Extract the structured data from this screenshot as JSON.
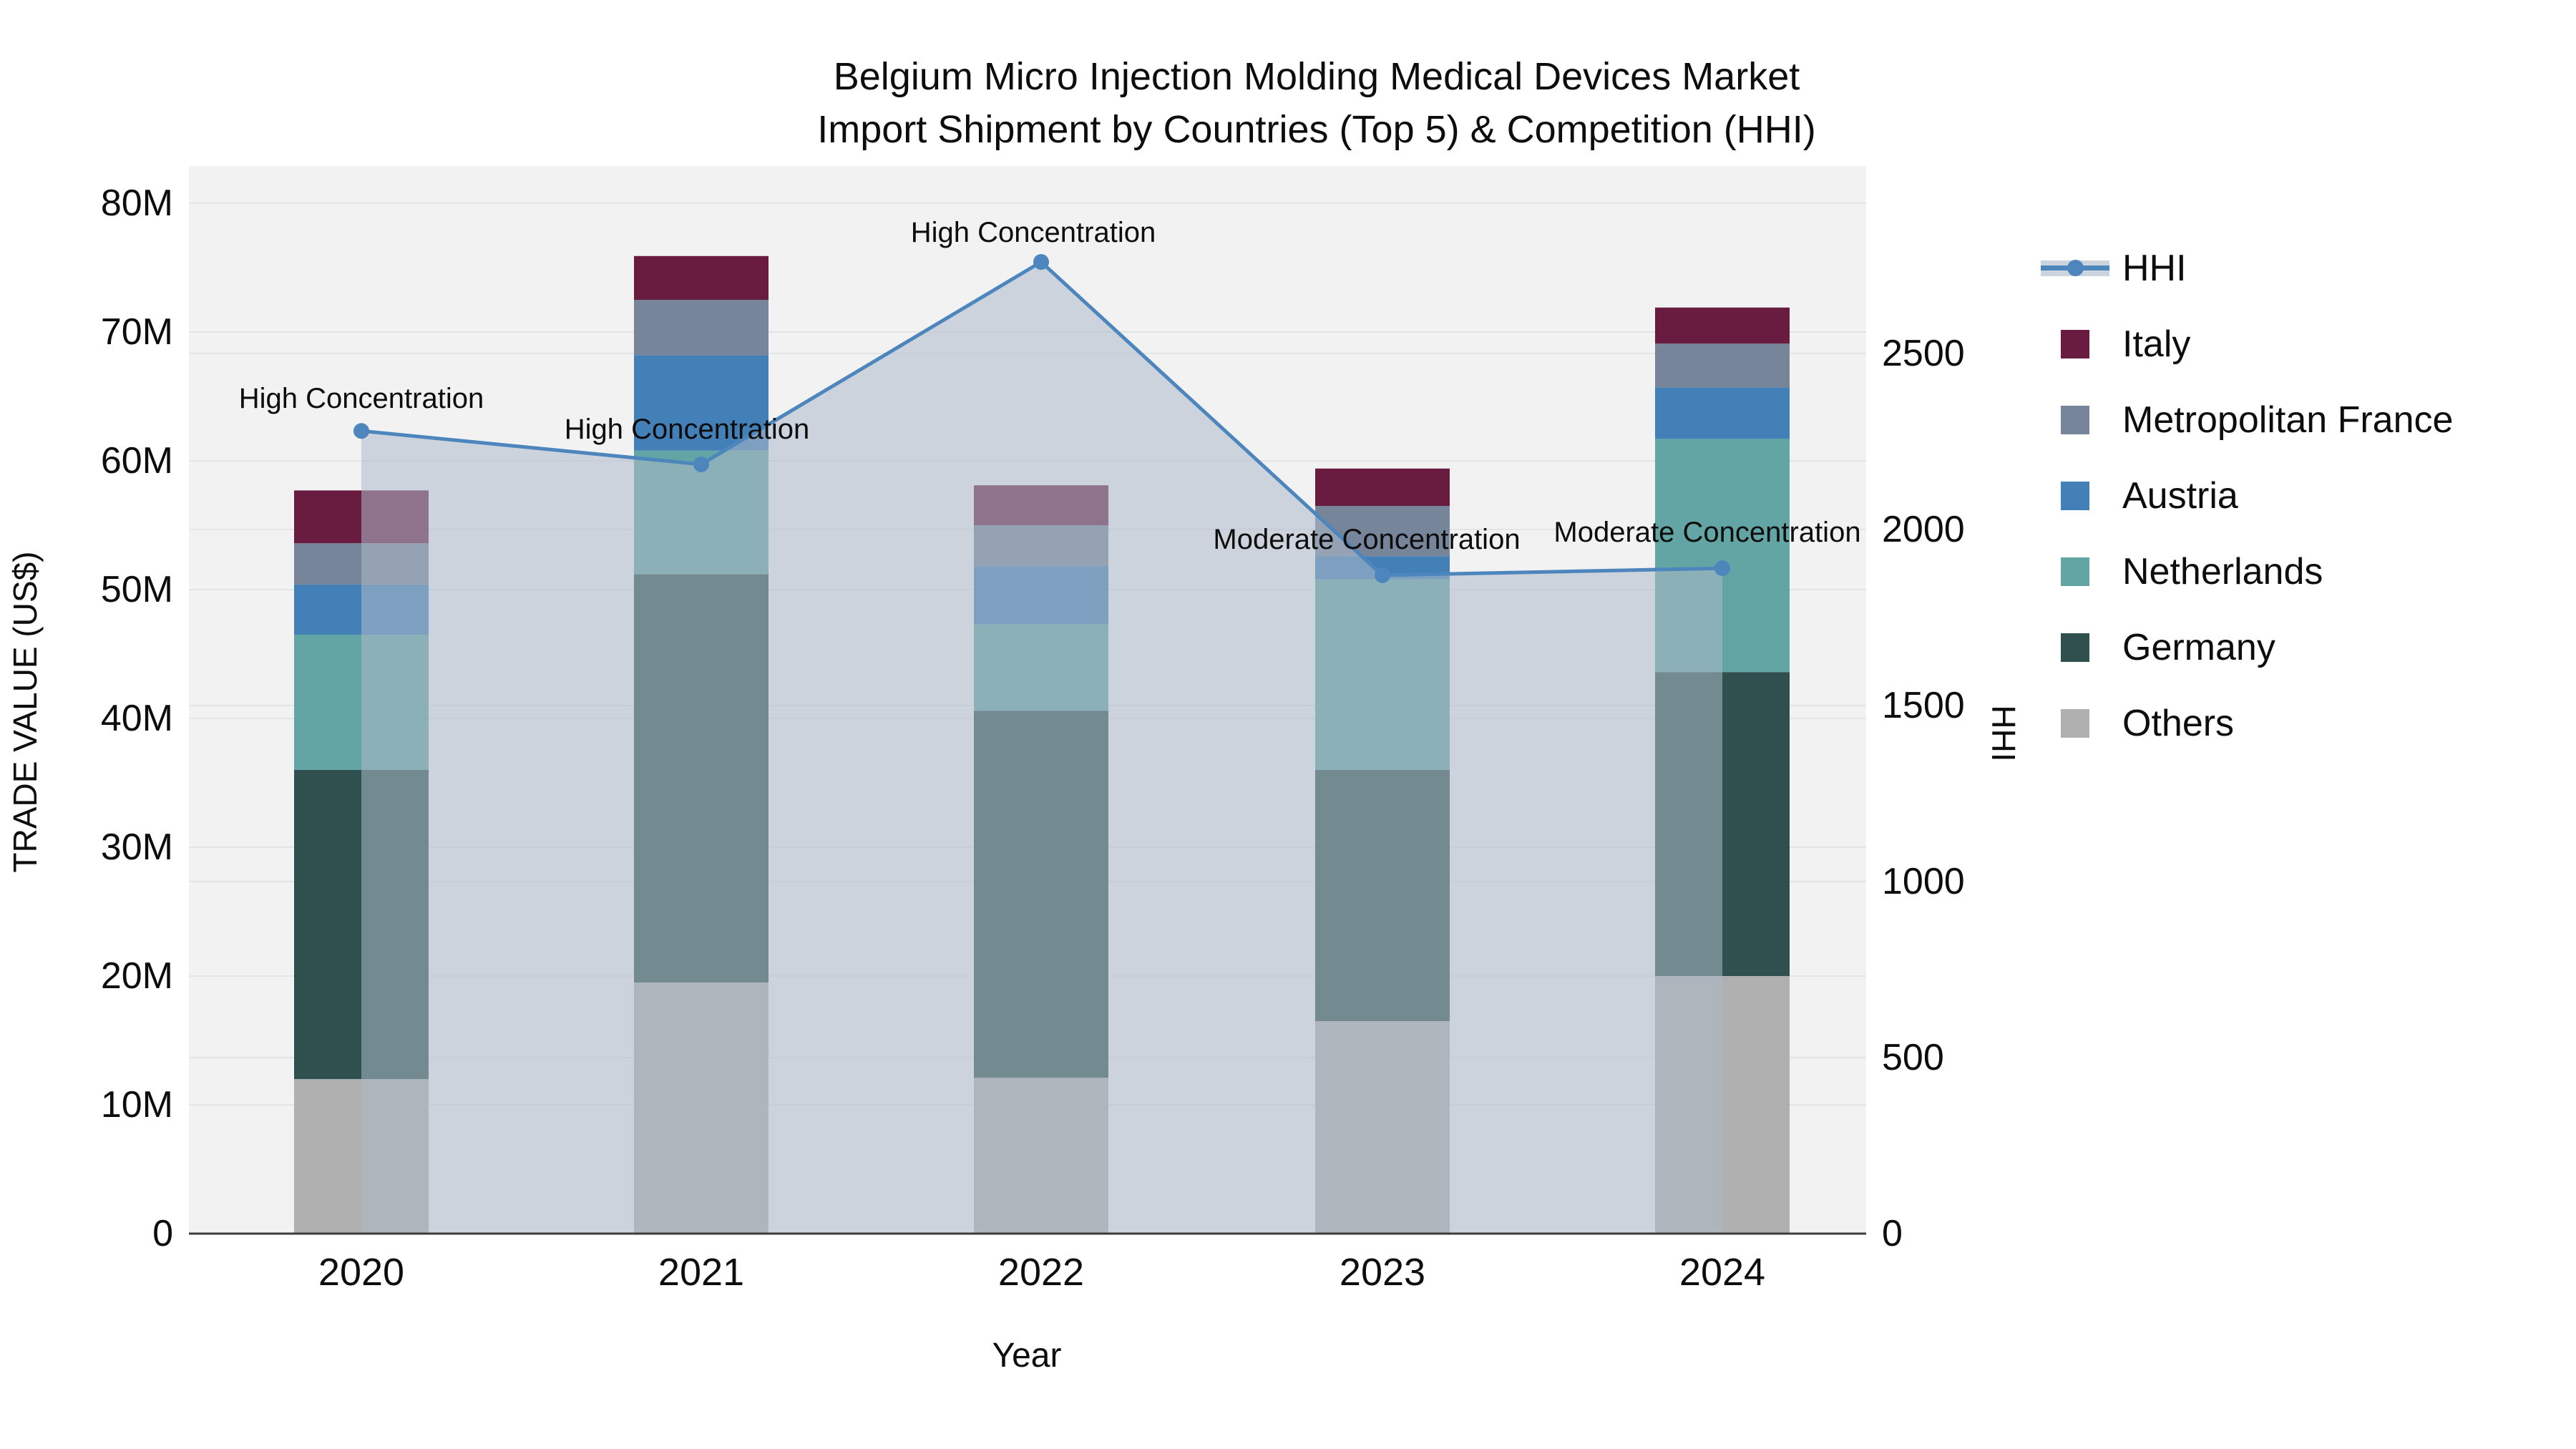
{
  "title": {
    "line1": "Belgium Micro Injection Molding Medical Devices Market",
    "line2": "Import Shipment by Countries (Top 5) & Competition (HHI)"
  },
  "axes": {
    "y_left": {
      "title": "TRADE VALUE (US$)",
      "tick_labels": [
        "0",
        "10M",
        "20M",
        "30M",
        "40M",
        "50M",
        "60M",
        "70M",
        "80M"
      ],
      "tick_values_m": [
        0,
        10,
        20,
        30,
        40,
        50,
        60,
        70,
        80
      ]
    },
    "y_right": {
      "title": "HHI",
      "tick_labels": [
        "0",
        "500",
        "1000",
        "1500",
        "2000",
        "2500"
      ],
      "tick_values": [
        0,
        500,
        1000,
        1500,
        2000,
        2500
      ]
    },
    "x": {
      "title": "Year",
      "categories": [
        "2020",
        "2021",
        "2022",
        "2023",
        "2024"
      ]
    }
  },
  "legend": {
    "items": [
      {
        "label": "HHI",
        "type": "line",
        "color": "#4d86bd"
      },
      {
        "label": "Italy",
        "type": "box",
        "color": "#6a1b40"
      },
      {
        "label": "Metropolitan France",
        "type": "box",
        "color": "#77859a"
      },
      {
        "label": "Austria",
        "type": "box",
        "color": "#4480b8"
      },
      {
        "label": "Netherlands",
        "type": "box",
        "color": "#63a4a4"
      },
      {
        "label": "Germany",
        "type": "box",
        "color": "#30504f"
      },
      {
        "label": "Others",
        "type": "box",
        "color": "#b0b0b0"
      }
    ]
  },
  "chart_data": {
    "type": "bar",
    "subtype": "stacked-bars-with-line-overlay",
    "categories": [
      "2020",
      "2021",
      "2022",
      "2023",
      "2024"
    ],
    "bar_value_unit": "US$ millions",
    "stack_order_bottom_to_top": [
      "Others",
      "Germany",
      "Netherlands",
      "Austria",
      "Metropolitan France",
      "Italy"
    ],
    "series": [
      {
        "name": "Others",
        "color": "#b0b0b0",
        "values": [
          12.0,
          19.5,
          12.1,
          16.5,
          20.0
        ]
      },
      {
        "name": "Germany",
        "color": "#30504f",
        "values": [
          24.0,
          31.7,
          28.5,
          19.5,
          23.6
        ]
      },
      {
        "name": "Netherlands",
        "color": "#63a4a4",
        "values": [
          10.5,
          9.6,
          6.7,
          14.8,
          18.1
        ]
      },
      {
        "name": "Austria",
        "color": "#4480b8",
        "values": [
          3.9,
          7.4,
          4.5,
          1.8,
          4.0
        ]
      },
      {
        "name": "Metropolitan France",
        "color": "#77859a",
        "values": [
          3.2,
          4.3,
          3.2,
          3.9,
          3.4
        ]
      },
      {
        "name": "Italy",
        "color": "#6a1b40",
        "values": [
          4.1,
          3.4,
          3.1,
          2.9,
          2.8
        ]
      }
    ],
    "bar_totals_m": [
      57.7,
      75.9,
      58.1,
      59.4,
      71.9
    ],
    "line_series": {
      "name": "HHI",
      "values": [
        2280,
        2185,
        2760,
        1870,
        1890
      ],
      "color": "#4d86bd",
      "area_fill": "rgba(173,186,200,0.55)",
      "markers": true
    },
    "annotations": [
      {
        "text": "High Concentration",
        "category_index": 0
      },
      {
        "text": "High Concentration",
        "category_index": 1
      },
      {
        "text": "High Concentration",
        "category_index": 2
      },
      {
        "text": "Moderate Concentration",
        "category_index": 3
      },
      {
        "text": "Moderate Concentration",
        "category_index": 4
      }
    ],
    "ylim_left_m": [
      0,
      80
    ],
    "grid": true,
    "plot_background": "#f2f2f3",
    "gridline_color": "#e4e4e7",
    "legend_position": "right"
  }
}
